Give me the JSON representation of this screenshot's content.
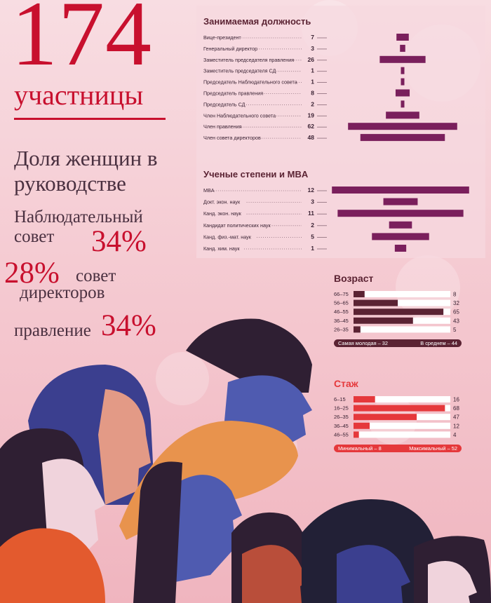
{
  "header": {
    "number": "174",
    "label": "участницы"
  },
  "share": {
    "title": "Доля женщин в руководстве",
    "supervisory": {
      "label": "Наблюдательный совет",
      "pct": "34%"
    },
    "directors": {
      "pct": "28%",
      "label1": "совет",
      "label2": "директоров"
    },
    "board": {
      "label": "правление",
      "pct": "34%"
    }
  },
  "colors": {
    "accent": "#c8102e",
    "plum": "#7a1f5c",
    "maroon": "#5b2333",
    "coral": "#e5383b"
  },
  "chart_data": [
    {
      "type": "bar",
      "title": "Занимаемая должность",
      "categories": [
        "Вице-президент",
        "Генеральный директор",
        "Заместитель председателя правления",
        "Заместитель председателя СД",
        "Председатель Наблюдательного совета",
        "Председатель правления",
        "Председатель СД",
        "Член Наблюдательного совета",
        "Член правления",
        "Член совета директоров"
      ],
      "values": [
        7,
        3,
        26,
        1,
        1,
        8,
        2,
        19,
        62,
        48
      ],
      "style": "centered-bars"
    },
    {
      "type": "bar",
      "title": "Ученые степени и MBA",
      "categories": [
        "MBA",
        "Докт. экон. наук",
        "Канд. экон. наук",
        "Кандидат политических наук",
        "Канд. физ.-мат. наук",
        "Канд. хим. наук"
      ],
      "values": [
        12,
        3,
        11,
        2,
        5,
        1
      ],
      "style": "centered-bars"
    },
    {
      "type": "bar",
      "title": "Возраст",
      "categories": [
        "66–75",
        "56–65",
        "46–55",
        "36–45",
        "26–35"
      ],
      "values": [
        8,
        32,
        65,
        43,
        5
      ],
      "footer": {
        "min": "Самая молодая – 32",
        "avg": "В среднем – 44"
      }
    },
    {
      "type": "bar",
      "title": "Стаж",
      "categories": [
        "6–15",
        "16–25",
        "26–35",
        "36–45",
        "46–55"
      ],
      "values": [
        16,
        68,
        47,
        12,
        4
      ],
      "footer": {
        "min": "Минимальный – 8",
        "max": "Максимальный – 52"
      }
    }
  ]
}
